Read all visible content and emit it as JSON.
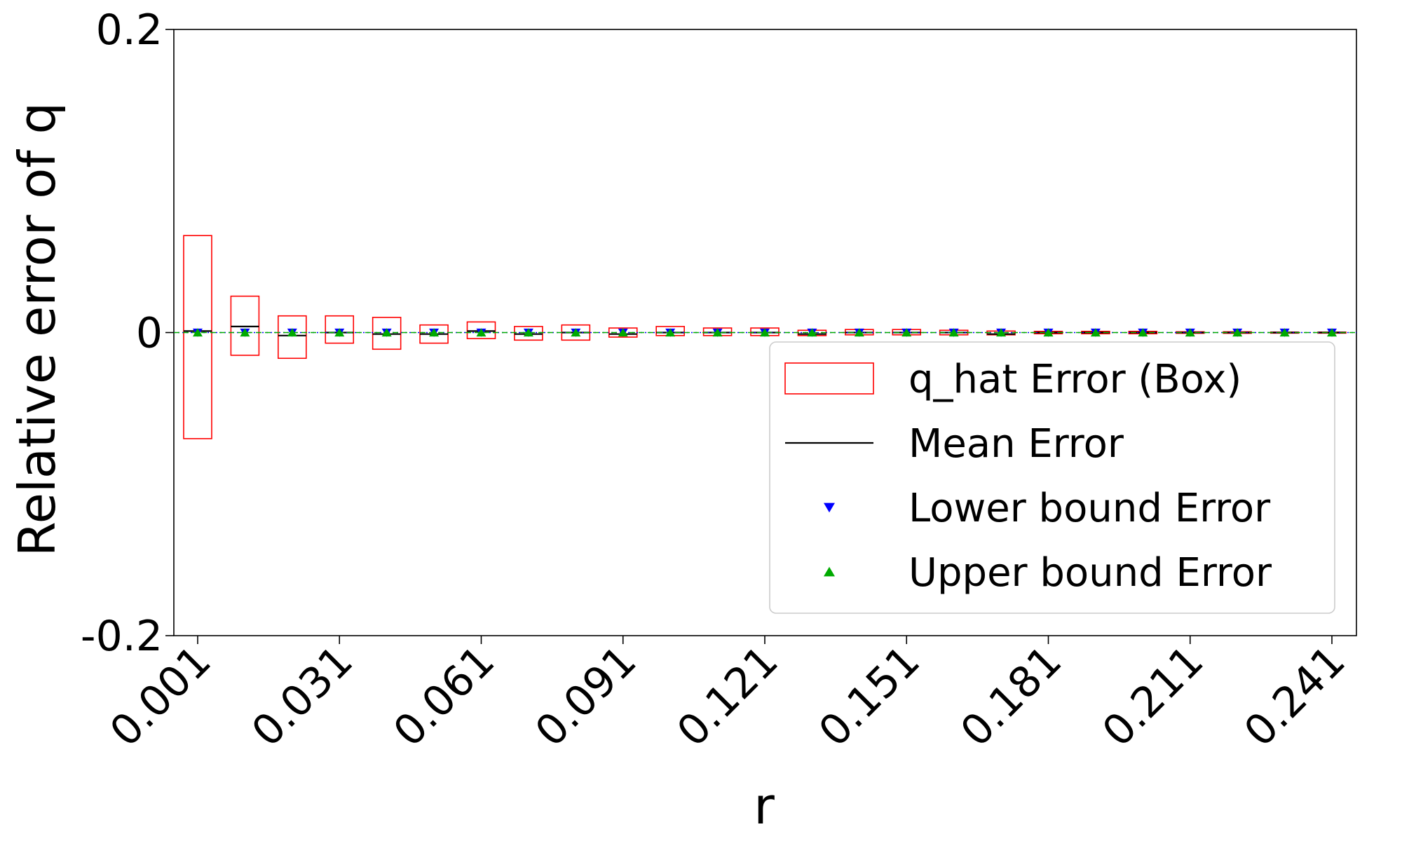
{
  "chart_data": {
    "type": "box",
    "title": "",
    "xlabel": "r",
    "ylabel": "Relative error of q",
    "ylim": [
      -0.2,
      0.2
    ],
    "y_ticks": [
      {
        "value": 0.2,
        "label": "0.2"
      },
      {
        "value": 0,
        "label": "0"
      },
      {
        "value": -0.2,
        "label": "-0.2"
      }
    ],
    "x_tick_labels": [
      "0.001",
      "0.031",
      "0.061",
      "0.091",
      "0.121",
      "0.151",
      "0.181",
      "0.211",
      "0.241"
    ],
    "grid": false,
    "legend_position": "lower-right",
    "legend": [
      {
        "key": "box",
        "label": "q_hat Error (Box)",
        "color": "#ff0000"
      },
      {
        "key": "mean",
        "label": "Mean Error",
        "color": "#000000"
      },
      {
        "key": "lower",
        "label": "Lower bound Error",
        "color": "#0000ff"
      },
      {
        "key": "upper",
        "label": "Upper bound Error",
        "color": "#00aa00"
      }
    ],
    "reference_lines": [
      {
        "name": "lower-bound-reference",
        "y": 0,
        "color": "#0000ff",
        "style": "dotted"
      },
      {
        "name": "upper-bound-reference",
        "y": 0,
        "color": "#00aa00",
        "style": "dashed"
      }
    ],
    "x": [
      0.001,
      0.011,
      0.021,
      0.031,
      0.041,
      0.051,
      0.061,
      0.071,
      0.081,
      0.091,
      0.101,
      0.111,
      0.121,
      0.131,
      0.141,
      0.151,
      0.161,
      0.171,
      0.181,
      0.191,
      0.201,
      0.211,
      0.221,
      0.231,
      0.241
    ],
    "box_low": [
      -0.07,
      -0.015,
      -0.017,
      -0.007,
      -0.011,
      -0.007,
      -0.004,
      -0.005,
      -0.005,
      -0.003,
      -0.002,
      -0.002,
      -0.002,
      -0.002,
      -0.0015,
      -0.0015,
      -0.0015,
      -0.0015,
      -0.0008,
      -0.0008,
      -0.0008,
      -0.0005,
      -0.0005,
      -0.0003,
      -0.0003
    ],
    "box_high": [
      0.064,
      0.024,
      0.011,
      0.011,
      0.01,
      0.005,
      0.007,
      0.004,
      0.005,
      0.003,
      0.004,
      0.003,
      0.003,
      0.0015,
      0.002,
      0.002,
      0.0015,
      0.001,
      0.0008,
      0.0008,
      0.0008,
      0.0005,
      0.0005,
      0.0003,
      0.0003
    ],
    "mean": [
      0.001,
      0.004,
      -0.002,
      0.0,
      -0.001,
      -0.001,
      0.001,
      -0.001,
      0.0,
      -0.001,
      0.0,
      0.0,
      0.0,
      -0.001,
      0.0,
      0.0,
      0.0,
      -0.001,
      0.0,
      0.0,
      0.0,
      0.0,
      0.0,
      0.0,
      0.0
    ],
    "lower_bound": [
      0.0,
      0.0,
      0.0,
      0.0,
      0.0,
      0.0,
      0.0,
      0.0,
      0.0,
      0.0,
      0.0,
      0.0,
      0.0,
      0.0,
      0.0,
      0.0,
      0.0,
      0.0,
      0.0,
      0.0,
      0.0,
      0.0,
      0.0,
      0.0,
      0.0
    ],
    "upper_bound": [
      0.0,
      0.0,
      0.0,
      0.0,
      0.0,
      0.0,
      0.0,
      0.0,
      0.0,
      0.0,
      0.0,
      0.0,
      0.0,
      0.0,
      0.0,
      0.0,
      0.0,
      0.0,
      0.0,
      0.0,
      0.0,
      0.0,
      0.0,
      0.0,
      0.0
    ],
    "colors": {
      "box": "#ff0000",
      "mean": "#000000",
      "lower": "#0000ff",
      "upper": "#00aa00",
      "axis": "#000000"
    }
  }
}
